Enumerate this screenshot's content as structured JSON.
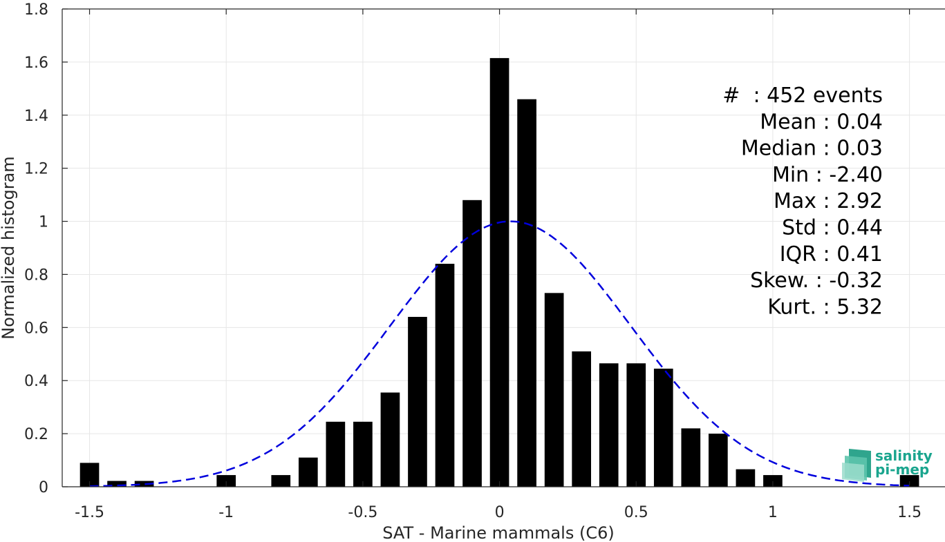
{
  "chart_data": {
    "type": "bar",
    "xlabel": "SAT - Marine mammals (C6)",
    "ylabel": "Normalized histogram",
    "xlim": [
      -1.6,
      1.63
    ],
    "ylim": [
      0,
      1.8
    ],
    "grid": true,
    "xticks": [
      -1.5,
      -1,
      -0.5,
      0,
      0.5,
      1,
      1.5
    ],
    "xtick_labels": [
      "-1.5",
      "-1",
      "-0.5",
      "0",
      "0.5",
      "1",
      "1.5"
    ],
    "yticks": [
      0,
      0.2,
      0.4,
      0.6,
      0.8,
      1,
      1.2,
      1.4,
      1.6,
      1.8
    ],
    "ytick_labels": [
      "0",
      "0.2",
      "0.4",
      "0.6",
      "0.8",
      "1",
      "1.2",
      "1.4",
      "1.6",
      "1.8"
    ],
    "bar_width": 0.07,
    "bars": [
      {
        "x": -1.5,
        "value": 0.09
      },
      {
        "x": -1.4,
        "value": 0.022
      },
      {
        "x": -1.3,
        "value": 0.022
      },
      {
        "x": -1.0,
        "value": 0.044
      },
      {
        "x": -0.8,
        "value": 0.044
      },
      {
        "x": -0.7,
        "value": 0.11
      },
      {
        "x": -0.6,
        "value": 0.245
      },
      {
        "x": -0.5,
        "value": 0.245
      },
      {
        "x": -0.4,
        "value": 0.355
      },
      {
        "x": -0.3,
        "value": 0.64
      },
      {
        "x": -0.2,
        "value": 0.84
      },
      {
        "x": -0.1,
        "value": 1.08
      },
      {
        "x": 0.0,
        "value": 1.615
      },
      {
        "x": 0.1,
        "value": 1.46
      },
      {
        "x": 0.2,
        "value": 0.73
      },
      {
        "x": 0.3,
        "value": 0.51
      },
      {
        "x": 0.4,
        "value": 0.465
      },
      {
        "x": 0.5,
        "value": 0.465
      },
      {
        "x": 0.6,
        "value": 0.445
      },
      {
        "x": 0.7,
        "value": 0.22
      },
      {
        "x": 0.8,
        "value": 0.2
      },
      {
        "x": 0.9,
        "value": 0.066
      },
      {
        "x": 1.0,
        "value": 0.044
      },
      {
        "x": 1.5,
        "value": 0.044
      }
    ],
    "fit_curve": {
      "style": "dashed",
      "color": "#0000dd",
      "mean": 0.04,
      "std": 0.44,
      "peak": 1.0,
      "x_range": [
        -1.5,
        1.5
      ]
    },
    "bar_color": "#000000",
    "stats_lines": [
      "#  : 452 events",
      "Mean : 0.04",
      "Median : 0.03",
      "Min : -2.40",
      "Max : 2.92",
      "Std : 0.44",
      "IQR : 0.41",
      "Skew. : -0.32",
      "Kurt. : 5.32"
    ]
  },
  "logo": {
    "line1": "salinity",
    "line2": "pi-mep",
    "color": "#1aa58e"
  }
}
